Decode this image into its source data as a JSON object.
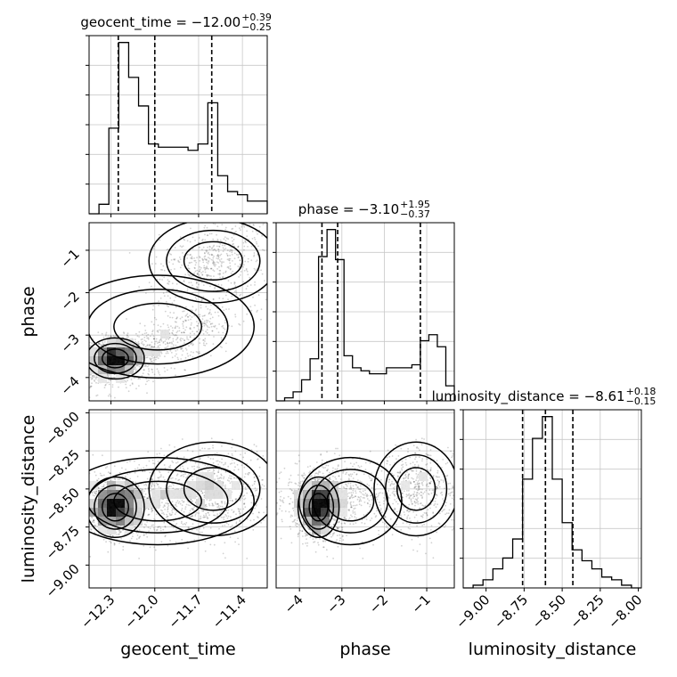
{
  "chart_data": {
    "type": "corner",
    "parameters": [
      "geocent_time",
      "phase",
      "luminosity_distance"
    ],
    "titles": [
      {
        "parameter": "geocent_time",
        "median": "−12.00",
        "plus": "+0.39",
        "minus": "−0.25"
      },
      {
        "parameter": "phase",
        "median": "−3.10",
        "plus": "+1.95",
        "minus": "−0.37"
      },
      {
        "parameter": "luminosity_distance",
        "median": "−8.61",
        "plus": "+0.18",
        "minus": "−0.15"
      }
    ],
    "ranges": {
      "geocent_time": [
        -12.45,
        -11.23
      ],
      "phase": [
        -4.55,
        -0.35
      ],
      "luminosity_distance": [
        -9.15,
        -7.98
      ]
    },
    "ticks": {
      "geocent_time": [
        {
          "v": -12.3,
          "label": "−12.3"
        },
        {
          "v": -12.0,
          "label": "−12.0"
        },
        {
          "v": -11.7,
          "label": "−11.7"
        },
        {
          "v": -11.4,
          "label": "−11.4"
        }
      ],
      "phase": [
        {
          "v": -4,
          "label": "−4"
        },
        {
          "v": -3,
          "label": "−3"
        },
        {
          "v": -2,
          "label": "−2"
        },
        {
          "v": -1,
          "label": "−1"
        }
      ],
      "luminosity_distance": [
        {
          "v": -9.0,
          "label": "−9.00"
        },
        {
          "v": -8.75,
          "label": "−8.75"
        },
        {
          "v": -8.5,
          "label": "−8.50"
        },
        {
          "v": -8.25,
          "label": "−8.25"
        },
        {
          "v": -8.0,
          "label": "−8.00"
        }
      ]
    },
    "quantiles": {
      "geocent_time": [
        -12.25,
        -12.0,
        -11.61
      ],
      "phase": [
        -3.47,
        -3.1,
        -1.15
      ],
      "luminosity_distance": [
        -8.76,
        -8.61,
        -8.43
      ]
    },
    "histograms": {
      "geocent_time": {
        "range": [
          -12.45,
          -11.23
        ],
        "counts": [
          0,
          3,
          27,
          54,
          43,
          34,
          22,
          21,
          21,
          21,
          20,
          22,
          35,
          12,
          7,
          6,
          4,
          4
        ]
      },
      "phase": {
        "range": [
          -4.55,
          -0.35
        ],
        "counts": [
          0,
          1,
          3,
          7,
          14,
          48,
          57,
          47,
          15,
          11,
          10,
          9,
          9,
          11,
          11,
          11,
          12,
          20,
          22,
          18,
          5
        ]
      },
      "luminosity_distance": {
        "range": [
          -9.15,
          -7.98
        ],
        "counts": [
          0,
          1,
          3,
          7,
          11,
          18,
          40,
          55,
          63,
          40,
          24,
          14,
          10,
          7,
          4,
          3,
          1,
          0
        ]
      }
    },
    "grid": true,
    "legend": "none"
  }
}
